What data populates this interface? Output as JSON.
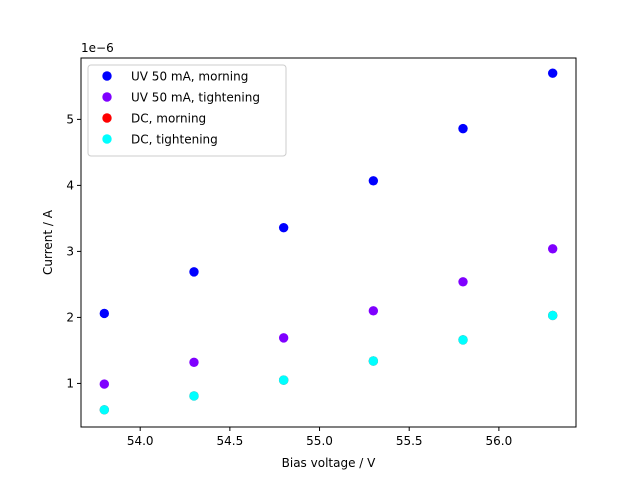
{
  "chart_data": {
    "type": "scatter",
    "title": "",
    "xlabel": "Bias voltage / V",
    "ylabel": "Current / A",
    "y_offset_label": "1e−6",
    "xlim": [
      53.67,
      56.43
    ],
    "ylim": [
      0.34,
      5.93
    ],
    "x_ticks": [
      54.0,
      54.5,
      55.0,
      55.5,
      56.0
    ],
    "x_tick_labels": [
      "54.0",
      "54.5",
      "55.0",
      "55.5",
      "56.0"
    ],
    "y_ticks": [
      1,
      2,
      3,
      4,
      5
    ],
    "y_tick_labels": [
      "1",
      "2",
      "3",
      "4",
      "5"
    ],
    "grid": false,
    "legend_position": "top-left",
    "series": [
      {
        "name": "UV 50 mA, morning",
        "color": "#0000ff",
        "x": [
          53.8,
          54.3,
          54.8,
          55.3,
          55.8,
          56.3
        ],
        "y": [
          2.06,
          2.69,
          3.36,
          4.07,
          4.86,
          5.7
        ]
      },
      {
        "name": "UV 50 mA, tightening",
        "color": "#7f00ff",
        "x": [
          53.8,
          54.3,
          54.8,
          55.3,
          55.8,
          56.3
        ],
        "y": [
          0.99,
          1.32,
          1.69,
          2.1,
          2.54,
          3.04
        ]
      },
      {
        "name": "DC, morning",
        "color": "#ff0000",
        "x": [
          53.8,
          54.3,
          54.8,
          55.3,
          55.8,
          56.3
        ],
        "y": [
          0.6,
          0.81,
          1.05,
          1.34,
          1.66,
          2.03
        ]
      },
      {
        "name": "DC, tightening",
        "color": "#00ffff",
        "x": [
          53.8,
          54.3,
          54.8,
          55.3,
          55.8,
          56.3
        ],
        "y": [
          0.6,
          0.81,
          1.05,
          1.34,
          1.66,
          2.03
        ]
      }
    ]
  }
}
